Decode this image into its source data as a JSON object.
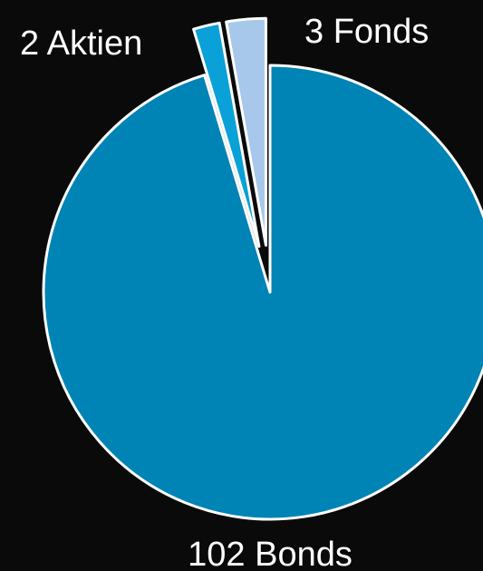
{
  "chart_data": {
    "type": "pie",
    "slices": [
      {
        "label": "102 Bonds",
        "value": 102,
        "color": "#0083b5"
      },
      {
        "label": "2 Aktien",
        "value": 2,
        "color": "#0aa0d8"
      },
      {
        "label": "3 Fonds",
        "value": 3,
        "color": "#a7c8ea"
      }
    ],
    "start_angle_deg": 0,
    "direction": "clockwise",
    "exploded": [
      "2 Aktien",
      "3 Fonds"
    ],
    "edge_color": "#ffffff",
    "background": "#0a0a0a"
  }
}
